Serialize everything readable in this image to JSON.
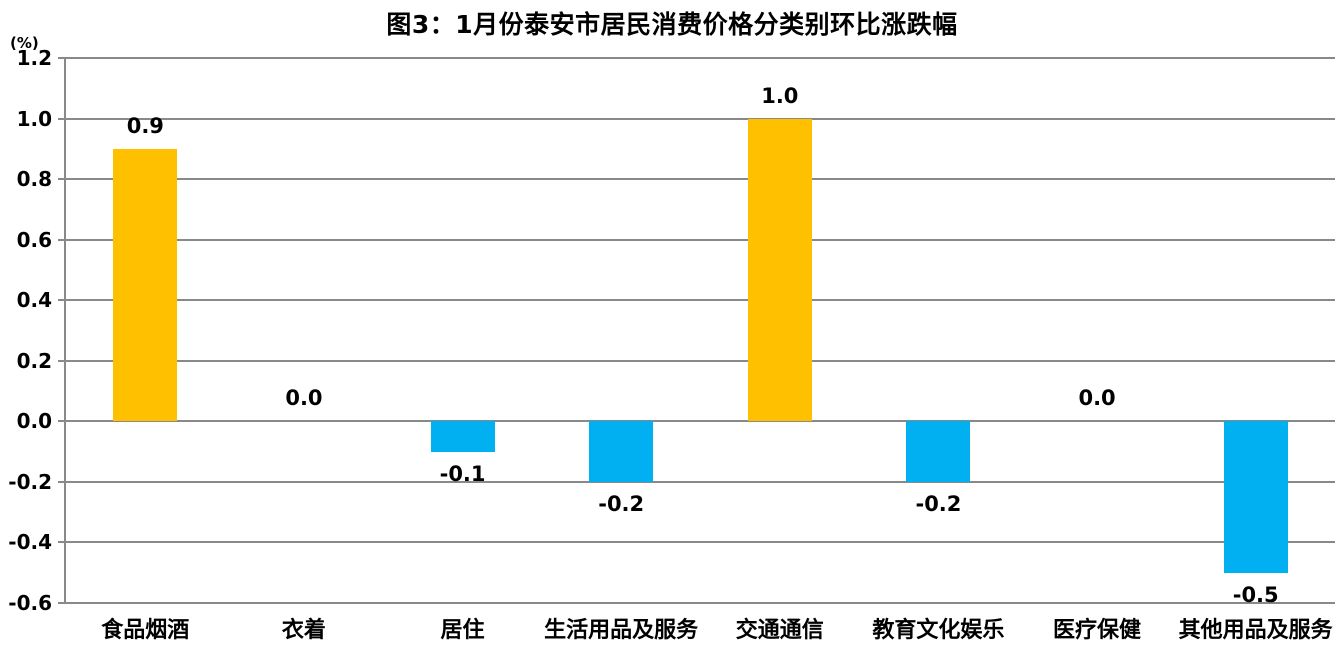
{
  "chart_data": {
    "type": "bar",
    "title": "图3：1月份泰安市居民消费价格分类别环比涨跌幅",
    "unit_label": "(%)",
    "categories": [
      "食品烟酒",
      "衣着",
      "居住",
      "生活用品及服务",
      "交通通信",
      "教育文化娱乐",
      "医疗保健",
      "其他用品及服务"
    ],
    "values": [
      0.9,
      0.0,
      -0.1,
      -0.2,
      1.0,
      -0.2,
      0.0,
      -0.5
    ],
    "value_labels": [
      "0.9",
      "0.0",
      "-0.1",
      "-0.2",
      "1.0",
      "-0.2",
      "0.0",
      "-0.5"
    ],
    "ylim": [
      -0.6,
      1.2
    ],
    "ytick_step": 0.2,
    "yticks": [
      "1.2",
      "1.0",
      "0.8",
      "0.6",
      "0.4",
      "0.2",
      "0.0",
      "-0.2",
      "-0.4",
      "-0.6"
    ],
    "grid": true,
    "legend": "none",
    "colors": {
      "positive_bar": "#FFC000",
      "negative_bar": "#00B0F0",
      "gridline": "#898989",
      "axis": "#898989",
      "text": "#000000",
      "background": "#FFFFFF"
    }
  }
}
